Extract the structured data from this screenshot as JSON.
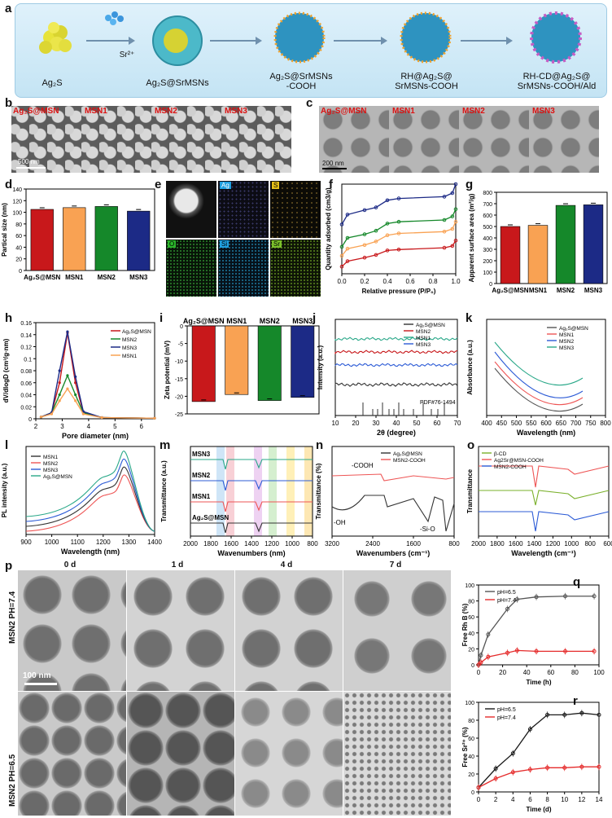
{
  "panels": {
    "a": "a",
    "b": "b",
    "c": "c",
    "d": "d",
    "e": "e",
    "f": "f",
    "g": "g",
    "h": "h",
    "i": "i",
    "j": "j",
    "k": "k",
    "l": "l",
    "m": "m",
    "n": "n",
    "o": "o",
    "p": "p",
    "q": "q",
    "r": "r"
  },
  "scheme": {
    "steps": [
      "Ag₂S",
      "Ag₂S@SrMSNs",
      "Ag₂S@SrMSNs\n-COOH",
      "RH@Ag₂S@\nSrMSNs-COOH",
      "RH-CD@Ag₂S@\nSrMSNs-COOH/Ald"
    ],
    "sr_label": "Sr²⁺"
  },
  "micrographs": {
    "b_labels": [
      "Ag₂S@MSN",
      "MSN1",
      "MSN2",
      "MSN3"
    ],
    "b_scale": "500 nm",
    "c_labels": [
      "Ag₂S@MSN",
      "MSN1",
      "MSN2",
      "MSN3"
    ],
    "c_scale": "200 nm",
    "e_labels": [
      "Ag",
      "S",
      "O",
      "Si",
      "Sr"
    ],
    "p_days": [
      "0 d",
      "1 d",
      "4 d",
      "7 d"
    ],
    "p_rows": [
      "MSN2 PH=7.4",
      "MSN2 PH=6.5"
    ],
    "p_scale": "100 nm"
  },
  "colors": {
    "red": "#c8181b",
    "orange": "#f9a253",
    "green": "#15882a",
    "navy": "#1c2a86",
    "blue": "#2c5bd6",
    "black": "#333333"
  },
  "chart_data": [
    {
      "id": "d",
      "type": "bar",
      "categories": [
        "Ag₂S@MSN",
        "MSN1",
        "MSN2",
        "MSN3"
      ],
      "values": [
        105,
        108,
        110,
        102
      ],
      "ylabel": "Partical size (nm)",
      "ylim": [
        0,
        140
      ],
      "yticks": [
        0,
        20,
        40,
        60,
        80,
        100,
        120,
        140
      ]
    },
    {
      "id": "f",
      "type": "line",
      "xlabel": "Relative pressure (P/P₀)",
      "ylabel": "Quantity adsorbed (cm3/g)",
      "xlim": [
        0,
        1
      ],
      "xticks": [
        "0.0",
        "0.2",
        "0.4",
        "0.6",
        "0.8",
        "1.0"
      ],
      "series": [
        {
          "color": "#1c2a86",
          "values": [
            [
              0,
              0.55
            ],
            [
              0.05,
              0.66
            ],
            [
              0.2,
              0.71
            ],
            [
              0.3,
              0.74
            ],
            [
              0.4,
              0.82
            ],
            [
              0.5,
              0.84
            ],
            [
              0.9,
              0.86
            ],
            [
              0.97,
              0.9
            ],
            [
              1,
              1.0
            ]
          ]
        },
        {
          "color": "#15882a",
          "values": [
            [
              0,
              0.3
            ],
            [
              0.05,
              0.4
            ],
            [
              0.2,
              0.44
            ],
            [
              0.3,
              0.48
            ],
            [
              0.4,
              0.56
            ],
            [
              0.5,
              0.58
            ],
            [
              0.9,
              0.6
            ],
            [
              0.97,
              0.64
            ],
            [
              1,
              0.72
            ]
          ]
        },
        {
          "color": "#f9a253",
          "values": [
            [
              0,
              0.2
            ],
            [
              0.05,
              0.28
            ],
            [
              0.2,
              0.32
            ],
            [
              0.3,
              0.36
            ],
            [
              0.4,
              0.43
            ],
            [
              0.5,
              0.45
            ],
            [
              0.9,
              0.47
            ],
            [
              0.97,
              0.5
            ],
            [
              1,
              0.58
            ]
          ]
        },
        {
          "color": "#c8181b",
          "values": [
            [
              0,
              0.08
            ],
            [
              0.05,
              0.14
            ],
            [
              0.2,
              0.18
            ],
            [
              0.3,
              0.21
            ],
            [
              0.4,
              0.26
            ],
            [
              0.5,
              0.27
            ],
            [
              0.9,
              0.29
            ],
            [
              0.97,
              0.31
            ],
            [
              1,
              0.37
            ]
          ]
        }
      ]
    },
    {
      "id": "g",
      "type": "bar",
      "categories": [
        "Ag₂S@MSN",
        "MSN1",
        "MSN2",
        "MSN3"
      ],
      "values": [
        500,
        510,
        685,
        690
      ],
      "ylabel": "Apparent surface area (m²/g)",
      "ylim": [
        0,
        800
      ],
      "yticks": [
        0,
        100,
        200,
        300,
        400,
        500,
        600,
        700,
        800
      ]
    },
    {
      "id": "h",
      "type": "line",
      "xlabel": "Pore diameter (nm)",
      "ylabel": "dV/dlogD (cm³/g·nm)",
      "xlim": [
        2,
        6.5
      ],
      "ylim": [
        0,
        0.16
      ],
      "xticks": [
        2,
        3,
        4,
        5,
        6
      ],
      "yticks": [
        0,
        0.02,
        0.04,
        0.06,
        0.08,
        0.1,
        0.12,
        0.14,
        0.16
      ],
      "legend": [
        "Ag₂S@MSN",
        "MSN2",
        "MSN3",
        "MSN1"
      ],
      "series": [
        {
          "name": "Ag₂S@MSN",
          "color": "#c8181b",
          "values": [
            [
              2.2,
              0.003
            ],
            [
              2.6,
              0.01
            ],
            [
              2.9,
              0.06
            ],
            [
              3.2,
              0.143
            ],
            [
              3.5,
              0.06
            ],
            [
              3.8,
              0.01
            ],
            [
              4.5,
              0.002
            ],
            [
              6.5,
              0.001
            ]
          ]
        },
        {
          "name": "MSN2",
          "color": "#15882a",
          "values": [
            [
              2.2,
              0.003
            ],
            [
              2.6,
              0.01
            ],
            [
              2.9,
              0.04
            ],
            [
              3.2,
              0.072
            ],
            [
              3.5,
              0.04
            ],
            [
              3.8,
              0.01
            ],
            [
              4.5,
              0.002
            ],
            [
              6.5,
              0.001
            ]
          ]
        },
        {
          "name": "MSN3",
          "color": "#1c2a86",
          "values": [
            [
              2.2,
              0.003
            ],
            [
              2.6,
              0.01
            ],
            [
              2.9,
              0.08
            ],
            [
              3.2,
              0.145
            ],
            [
              3.5,
              0.07
            ],
            [
              3.8,
              0.012
            ],
            [
              4.5,
              0.002
            ],
            [
              6.5,
              0.001
            ]
          ]
        },
        {
          "name": "MSN1",
          "color": "#f9a253",
          "values": [
            [
              2.2,
              0.003
            ],
            [
              2.6,
              0.008
            ],
            [
              2.9,
              0.03
            ],
            [
              3.2,
              0.05
            ],
            [
              3.5,
              0.03
            ],
            [
              3.8,
              0.008
            ],
            [
              4.5,
              0.002
            ],
            [
              6.5,
              0.001
            ]
          ]
        }
      ]
    },
    {
      "id": "i",
      "type": "bar",
      "categories": [
        "Ag₂S@MSN",
        "MSN1",
        "MSN2",
        "MSN3"
      ],
      "values": [
        -21.5,
        -19.5,
        -21.2,
        -20.3
      ],
      "ylabel": "Zeta potential (mV)",
      "ylim": [
        -25,
        0
      ],
      "yticks": [
        0,
        -5,
        -10,
        -15,
        -20,
        -25
      ]
    },
    {
      "id": "j",
      "type": "line",
      "xlabel": "2θ (degree)",
      "ylabel": "Intensity (a.u.)",
      "xticks": [
        10,
        20,
        30,
        40,
        50,
        60,
        70
      ],
      "legend": [
        "Ag₂S@MSN",
        "MSN2",
        "MSN1",
        "MSN3"
      ],
      "annotation": "PDF#76-1494"
    },
    {
      "id": "k",
      "type": "line",
      "xlabel": "Wavelength (nm)",
      "ylabel": "Absorbance (a.u.)",
      "xticks": [
        400,
        450,
        500,
        550,
        600,
        650,
        700,
        750,
        800
      ],
      "legend": [
        "Ag₂S@MSN",
        "MSN1",
        "MSN2",
        "MSN3"
      ]
    },
    {
      "id": "l",
      "type": "line",
      "xlabel": "Wavelength (nm)",
      "ylabel": "PL intensity (a.u.)",
      "xticks": [
        900,
        1000,
        1100,
        1200,
        1300,
        1400
      ],
      "legend": [
        "MSN1",
        "MSN2",
        "MSN3",
        "Ag₂S@MSN"
      ]
    },
    {
      "id": "m",
      "type": "line",
      "xlabel": "Wavenumbers (nm)",
      "ylabel": "Transmittance (a.u.)",
      "xticks": [
        2000,
        1800,
        1600,
        1400,
        1200,
        1000,
        800
      ],
      "labels": [
        "MSN3",
        "MSN2",
        "MSN1",
        "Ag₂S@MSN"
      ]
    },
    {
      "id": "n",
      "type": "line",
      "xlabel": "Wavenumbers (cm⁻¹)",
      "ylabel": "Transmittance (%)",
      "xticks": [
        3200,
        2400,
        1600,
        800
      ],
      "legend": [
        "Ag₂S@MSN",
        "MSN2-COOH"
      ],
      "annotations": [
        "-COOH",
        "-OH",
        "-Si-O"
      ]
    },
    {
      "id": "o",
      "type": "line",
      "xlabel": "Wavelength (cm⁻¹)",
      "ylabel": "Transmittance",
      "xticks": [
        2000,
        1800,
        1600,
        1400,
        1200,
        1000,
        800,
        600
      ],
      "legend": [
        "β-CD",
        "Ag2Sr@MSN-COOH",
        "MSN2-COOH"
      ]
    },
    {
      "id": "q",
      "type": "scatter",
      "xlabel": "Time (h)",
      "ylabel": "Free Rh B (%)",
      "xlim": [
        0,
        100
      ],
      "ylim": [
        0,
        100
      ],
      "xticks": [
        0,
        20,
        40,
        60,
        80,
        100
      ],
      "yticks": [
        0,
        20,
        40,
        60,
        80,
        100
      ],
      "series": [
        {
          "name": "pH=6.5",
          "color": "#555555",
          "values": [
            [
              0,
              0
            ],
            [
              2,
              12
            ],
            [
              8,
              38
            ],
            [
              24,
              70
            ],
            [
              32,
              82
            ],
            [
              48,
              85
            ],
            [
              72,
              86
            ],
            [
              96,
              86
            ]
          ]
        },
        {
          "name": "pH=7.4",
          "color": "#e52b2b",
          "values": [
            [
              0,
              0
            ],
            [
              2,
              3
            ],
            [
              8,
              10
            ],
            [
              24,
              15
            ],
            [
              32,
              18
            ],
            [
              48,
              17
            ],
            [
              72,
              17
            ],
            [
              96,
              17
            ]
          ]
        }
      ]
    },
    {
      "id": "r",
      "type": "scatter",
      "xlabel": "Time (d)",
      "ylabel": "Free Sr²⁺ (%)",
      "xlim": [
        0,
        14
      ],
      "ylim": [
        0,
        100
      ],
      "xticks": [
        0,
        2,
        4,
        6,
        8,
        10,
        12,
        14
      ],
      "yticks": [
        0,
        20,
        40,
        60,
        80,
        100
      ],
      "series": [
        {
          "name": "pH=6.5",
          "color": "#1a1a1a",
          "values": [
            [
              0,
              5
            ],
            [
              2,
              26
            ],
            [
              4,
              43
            ],
            [
              6,
              70
            ],
            [
              8,
              86
            ],
            [
              10,
              86
            ],
            [
              12,
              88
            ],
            [
              14,
              86
            ]
          ]
        },
        {
          "name": "pH=7.4",
          "color": "#e52b2b",
          "values": [
            [
              0,
              5
            ],
            [
              2,
              15
            ],
            [
              4,
              22
            ],
            [
              6,
              25
            ],
            [
              8,
              27
            ],
            [
              10,
              27
            ],
            [
              12,
              28
            ],
            [
              14,
              28
            ]
          ]
        }
      ]
    }
  ]
}
